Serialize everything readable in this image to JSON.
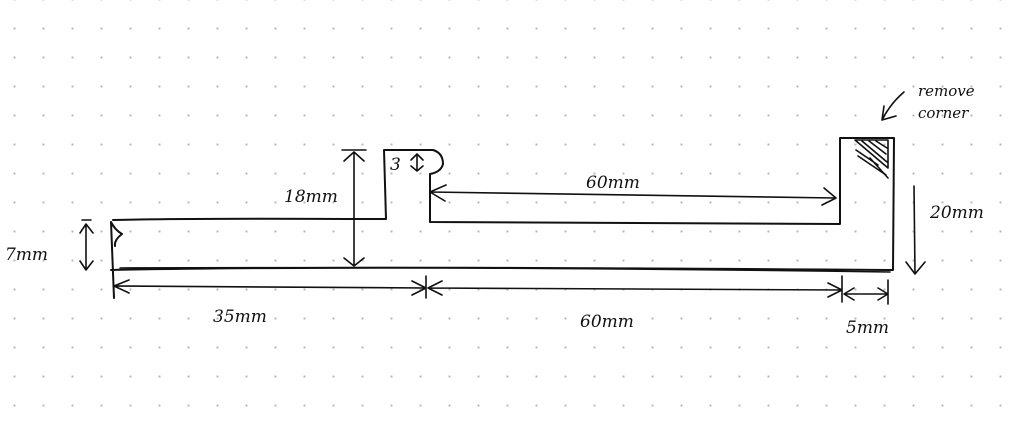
{
  "drawing": {
    "annotation": {
      "line1": "remove",
      "line2": "corner"
    },
    "dimensions": {
      "length_left": "35mm",
      "length_middle": "60mm",
      "length_end": "5mm",
      "length_top_slot": "60mm",
      "thickness": "7mm",
      "step_height": "18mm",
      "tab_height": "3",
      "end_height": "20mm"
    }
  }
}
